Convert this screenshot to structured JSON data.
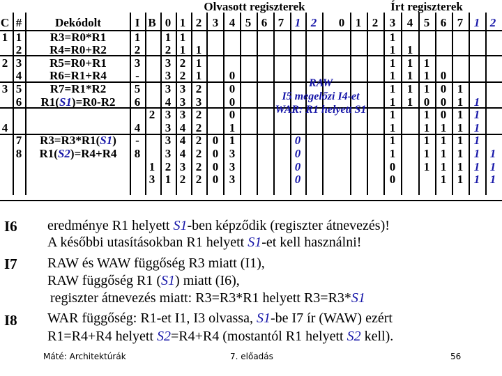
{
  "header": {
    "read_regs": "Olvasott regiszterek",
    "write_regs": "Írt regiszterek",
    "c": "C",
    "hash": "#",
    "decoded": "Dekódolt",
    "i": "I",
    "b": "B",
    "read_cols": [
      "0",
      "1",
      "2",
      "3",
      "4",
      "5",
      "6",
      "7",
      "1",
      "2"
    ],
    "write_cols": [
      "0",
      "1",
      "2",
      "3",
      "4",
      "5",
      "6",
      "7",
      "1",
      "2"
    ]
  },
  "rows": [
    {
      "c": "1",
      "n": "1",
      "instr": "R3=R0*R1",
      "i": "1",
      "b": "",
      "r": [
        "1",
        "1",
        "",
        "",
        "",
        "",
        "",
        "",
        "",
        ""
      ],
      "w": [
        "",
        "",
        "",
        "1",
        "",
        "",
        "",
        "",
        "",
        ""
      ]
    },
    {
      "c": "",
      "n": "2",
      "instr": "R4=R0+R2",
      "i": "2",
      "b": "",
      "r": [
        "2",
        "1",
        "1",
        "",
        "",
        "",
        "",
        "",
        "",
        ""
      ],
      "w": [
        "",
        "",
        "",
        "1",
        "1",
        "",
        "",
        "",
        "",
        ""
      ]
    },
    {
      "c": "2",
      "n": "3",
      "instr": "R5=R0+R1",
      "i": "3",
      "b": "",
      "r": [
        "3",
        "2",
        "1",
        "",
        "",
        "",
        "",
        "",
        "",
        ""
      ],
      "w": [
        "",
        "",
        "",
        "1",
        "1",
        "1",
        "",
        "",
        "",
        ""
      ]
    },
    {
      "c": "",
      "n": "4",
      "instr": "R6=R1+R4",
      "i": "-",
      "b": "",
      "r": [
        "3",
        "2",
        "1",
        "",
        "0",
        "",
        "",
        "",
        "",
        ""
      ],
      "w": [
        "",
        "",
        "",
        "1",
        "1",
        "1",
        "0",
        "",
        "",
        ""
      ]
    },
    {
      "c": "3",
      "n": "5",
      "instr": "R7=R1*R2",
      "i": "5",
      "b": "",
      "r": [
        "3",
        "3",
        "2",
        "",
        "0",
        "",
        "",
        "",
        "",
        ""
      ],
      "w": [
        "",
        "",
        "",
        "1",
        "1",
        "1",
        "0",
        "1",
        "",
        ""
      ]
    },
    {
      "c": "",
      "n": "6",
      "instr_pre": "R1(",
      "instr_s": "S1",
      "instr_post": ")=R0-R2",
      "i": "6",
      "b": "",
      "r": [
        "4",
        "3",
        "3",
        "",
        "0",
        "",
        "",
        "",
        "",
        ""
      ],
      "w": [
        "",
        "",
        "",
        "1",
        "1",
        "0",
        "0",
        "1",
        "1",
        ""
      ]
    },
    {
      "c": "",
      "n": "",
      "instr": "",
      "i": "",
      "b": "2",
      "r": [
        "3",
        "3",
        "2",
        "",
        "0",
        "",
        "",
        "",
        "",
        ""
      ],
      "w": [
        "",
        "",
        "",
        "1",
        "",
        "1",
        "0",
        "1",
        "1",
        ""
      ]
    },
    {
      "c": "4",
      "n": "",
      "instr": "",
      "i": "4",
      "b": "",
      "r": [
        "3",
        "4",
        "2",
        "",
        "1",
        "",
        "",
        "",
        "",
        ""
      ],
      "w": [
        "",
        "",
        "",
        "1",
        "",
        "1",
        "1",
        "1",
        "1",
        ""
      ]
    },
    {
      "c": "",
      "n": "7",
      "instr_pre": "R3=R3*R1(",
      "instr_s": "S1",
      "instr_post": ")",
      "i": "-",
      "b": "",
      "r": [
        "3",
        "4",
        "2",
        "0",
        "1",
        "",
        "",
        "",
        "0",
        ""
      ],
      "w": [
        "",
        "",
        "",
        "1",
        "",
        "1",
        "1",
        "1",
        "1",
        ""
      ]
    },
    {
      "c": "",
      "n": "8",
      "instr_pre": "R1(",
      "instr_s": "S2",
      "instr_post": ")=R4+R4",
      "i": "8",
      "b": "",
      "r": [
        "3",
        "4",
        "2",
        "0",
        "3",
        "",
        "",
        "",
        "0",
        ""
      ],
      "w": [
        "",
        "",
        "",
        "1",
        "",
        "1",
        "1",
        "1",
        "1",
        "1"
      ]
    },
    {
      "c": "",
      "n": "",
      "instr": "",
      "i": "",
      "b": "1",
      "r": [
        "2",
        "3",
        "2",
        "0",
        "3",
        "",
        "",
        "",
        "0",
        ""
      ],
      "w": [
        "",
        "",
        "",
        "0",
        "",
        "1",
        "1",
        "1",
        "1",
        "1"
      ]
    },
    {
      "c": "",
      "n": "",
      "instr": "",
      "i": "",
      "b": "3",
      "r": [
        "1",
        "2",
        "2",
        "0",
        "3",
        "",
        "",
        "",
        "0",
        ""
      ],
      "w": [
        "",
        "",
        "",
        "0",
        "",
        "",
        "1",
        "1",
        "1",
        "1"
      ]
    }
  ],
  "note": {
    "line1": "RAW",
    "line2": "I5 megelőzi I4-et",
    "line3": "WAR: R1 helyett S1"
  },
  "paragraphs": {
    "i6_label": "I6",
    "i6_l1a": "eredménye R1 helyett ",
    "i6_l1s": "S1",
    "i6_l1b": "-ben képződik (regiszter átnevezés)!",
    "i6_l2a": "A későbbi utasításokban R1 helyett ",
    "i6_l2s": "S1",
    "i6_l2b": "-et kell használni!",
    "i7_label": "I7",
    "i7_l1": "RAW és WAW függőség R3 miatt (I1),",
    "i7_l2a": "RAW függőség R1 (",
    "i7_l2s": "S1",
    "i7_l2b": ") miatt (I6),",
    "i7_l3a": "regiszter átnevezés miatt: R3=R3*R1 helyett R3=R3*",
    "i7_l3s": "S1",
    "i8_label": "I8",
    "i8_l1a": "WAR függőség: R1-et I1, I3 olvassa, ",
    "i8_l1s": "S1",
    "i8_l1b": "-be I7 ír (WAW) ezért",
    "i8_l2a": "R1=R4+R4 helyett ",
    "i8_l2s": "S2",
    "i8_l2b": "=R4+R4 (mostantól R1 helyett ",
    "i8_l2s2": "S2",
    "i8_l2c": " kell)."
  },
  "footer": {
    "author": "Máté: Architektúrák",
    "lecture": "7. előadás",
    "page": "56"
  }
}
